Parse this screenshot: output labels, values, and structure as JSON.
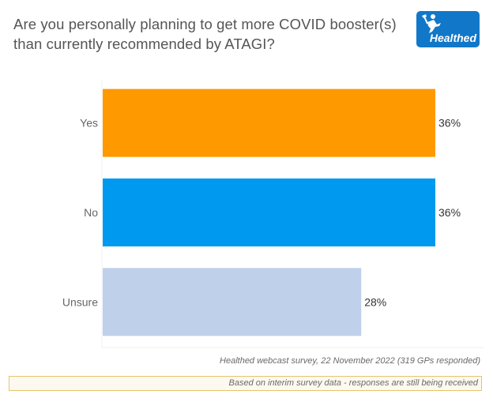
{
  "header": {
    "title_line1": "Are you personally planning to get more COVID booster(s)",
    "title_line2": "than currently recommended by ATAGI?",
    "logo_text": "Healthed",
    "logo_color": "#1178c9"
  },
  "chart_data": {
    "type": "bar",
    "orientation": "horizontal",
    "title": "Are you personally planning to get more COVID booster(s) than currently recommended by ATAGI?",
    "categories": [
      "Yes",
      "No",
      "Unsure"
    ],
    "values": [
      36,
      36,
      28
    ],
    "value_labels": [
      "36%",
      "36%",
      "28%"
    ],
    "colors": [
      "#ff9900",
      "#0099f0",
      "#bfd0ea"
    ],
    "xlabel": "",
    "ylabel": "",
    "xlim": [
      0,
      36
    ],
    "grid": false,
    "legend": "none"
  },
  "footer": {
    "source": "Healthed webcast survey, 22 November 2022 (319 GPs responded)",
    "note": "Based on interim survey data - responses are still being received"
  }
}
